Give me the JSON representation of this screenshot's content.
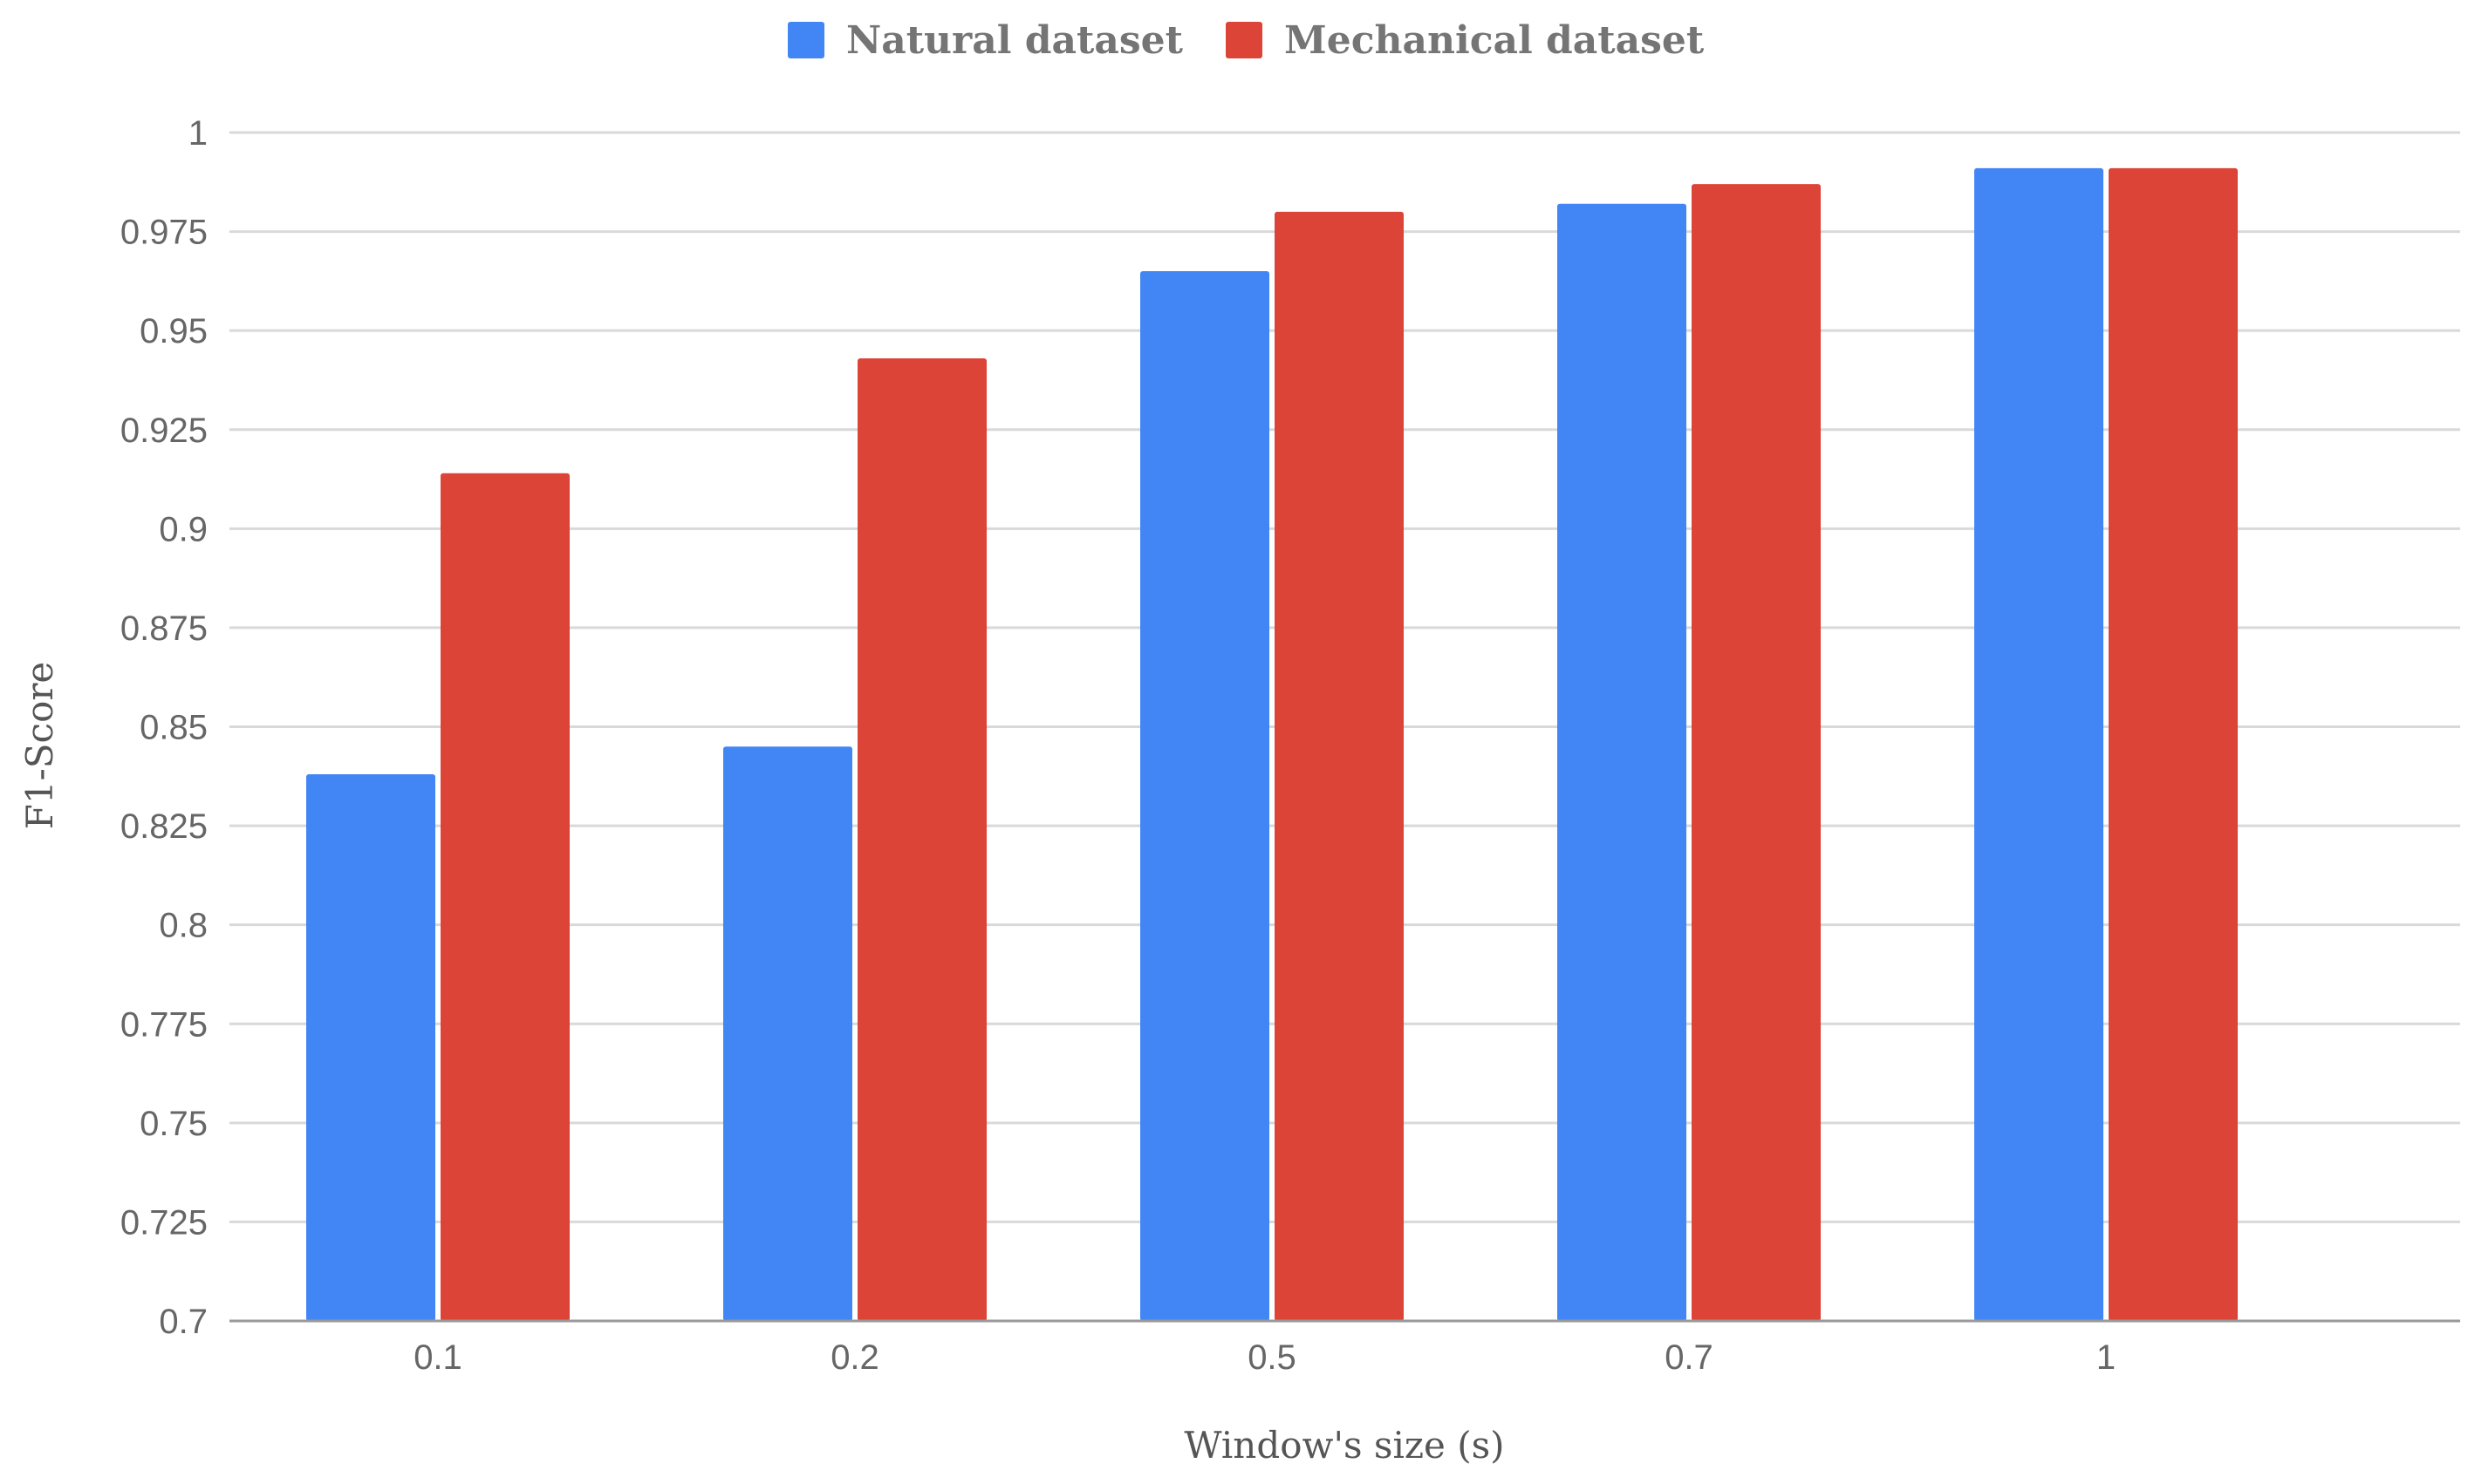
{
  "chart_data": {
    "type": "bar",
    "title": "",
    "xlabel": "Window's size (s)",
    "ylabel": "F1-Score",
    "categories": [
      "0.1",
      "0.2",
      "0.5",
      "0.7",
      "1"
    ],
    "series": [
      {
        "name": "Natural dataset",
        "color": "#4285f4",
        "values": [
          0.838,
          0.845,
          0.965,
          0.982,
          0.991
        ]
      },
      {
        "name": "Mechanical dataset",
        "color": "#db4437",
        "values": [
          0.914,
          0.943,
          0.98,
          0.987,
          0.991
        ]
      }
    ],
    "ylim": [
      0.7,
      1.0
    ],
    "yticks": [
      "0.7",
      "0.725",
      "0.75",
      "0.775",
      "0.8",
      "0.825",
      "0.85",
      "0.875",
      "0.9",
      "0.925",
      "0.95",
      "0.975",
      "1"
    ],
    "grid": true,
    "legend_position": "top-center"
  }
}
